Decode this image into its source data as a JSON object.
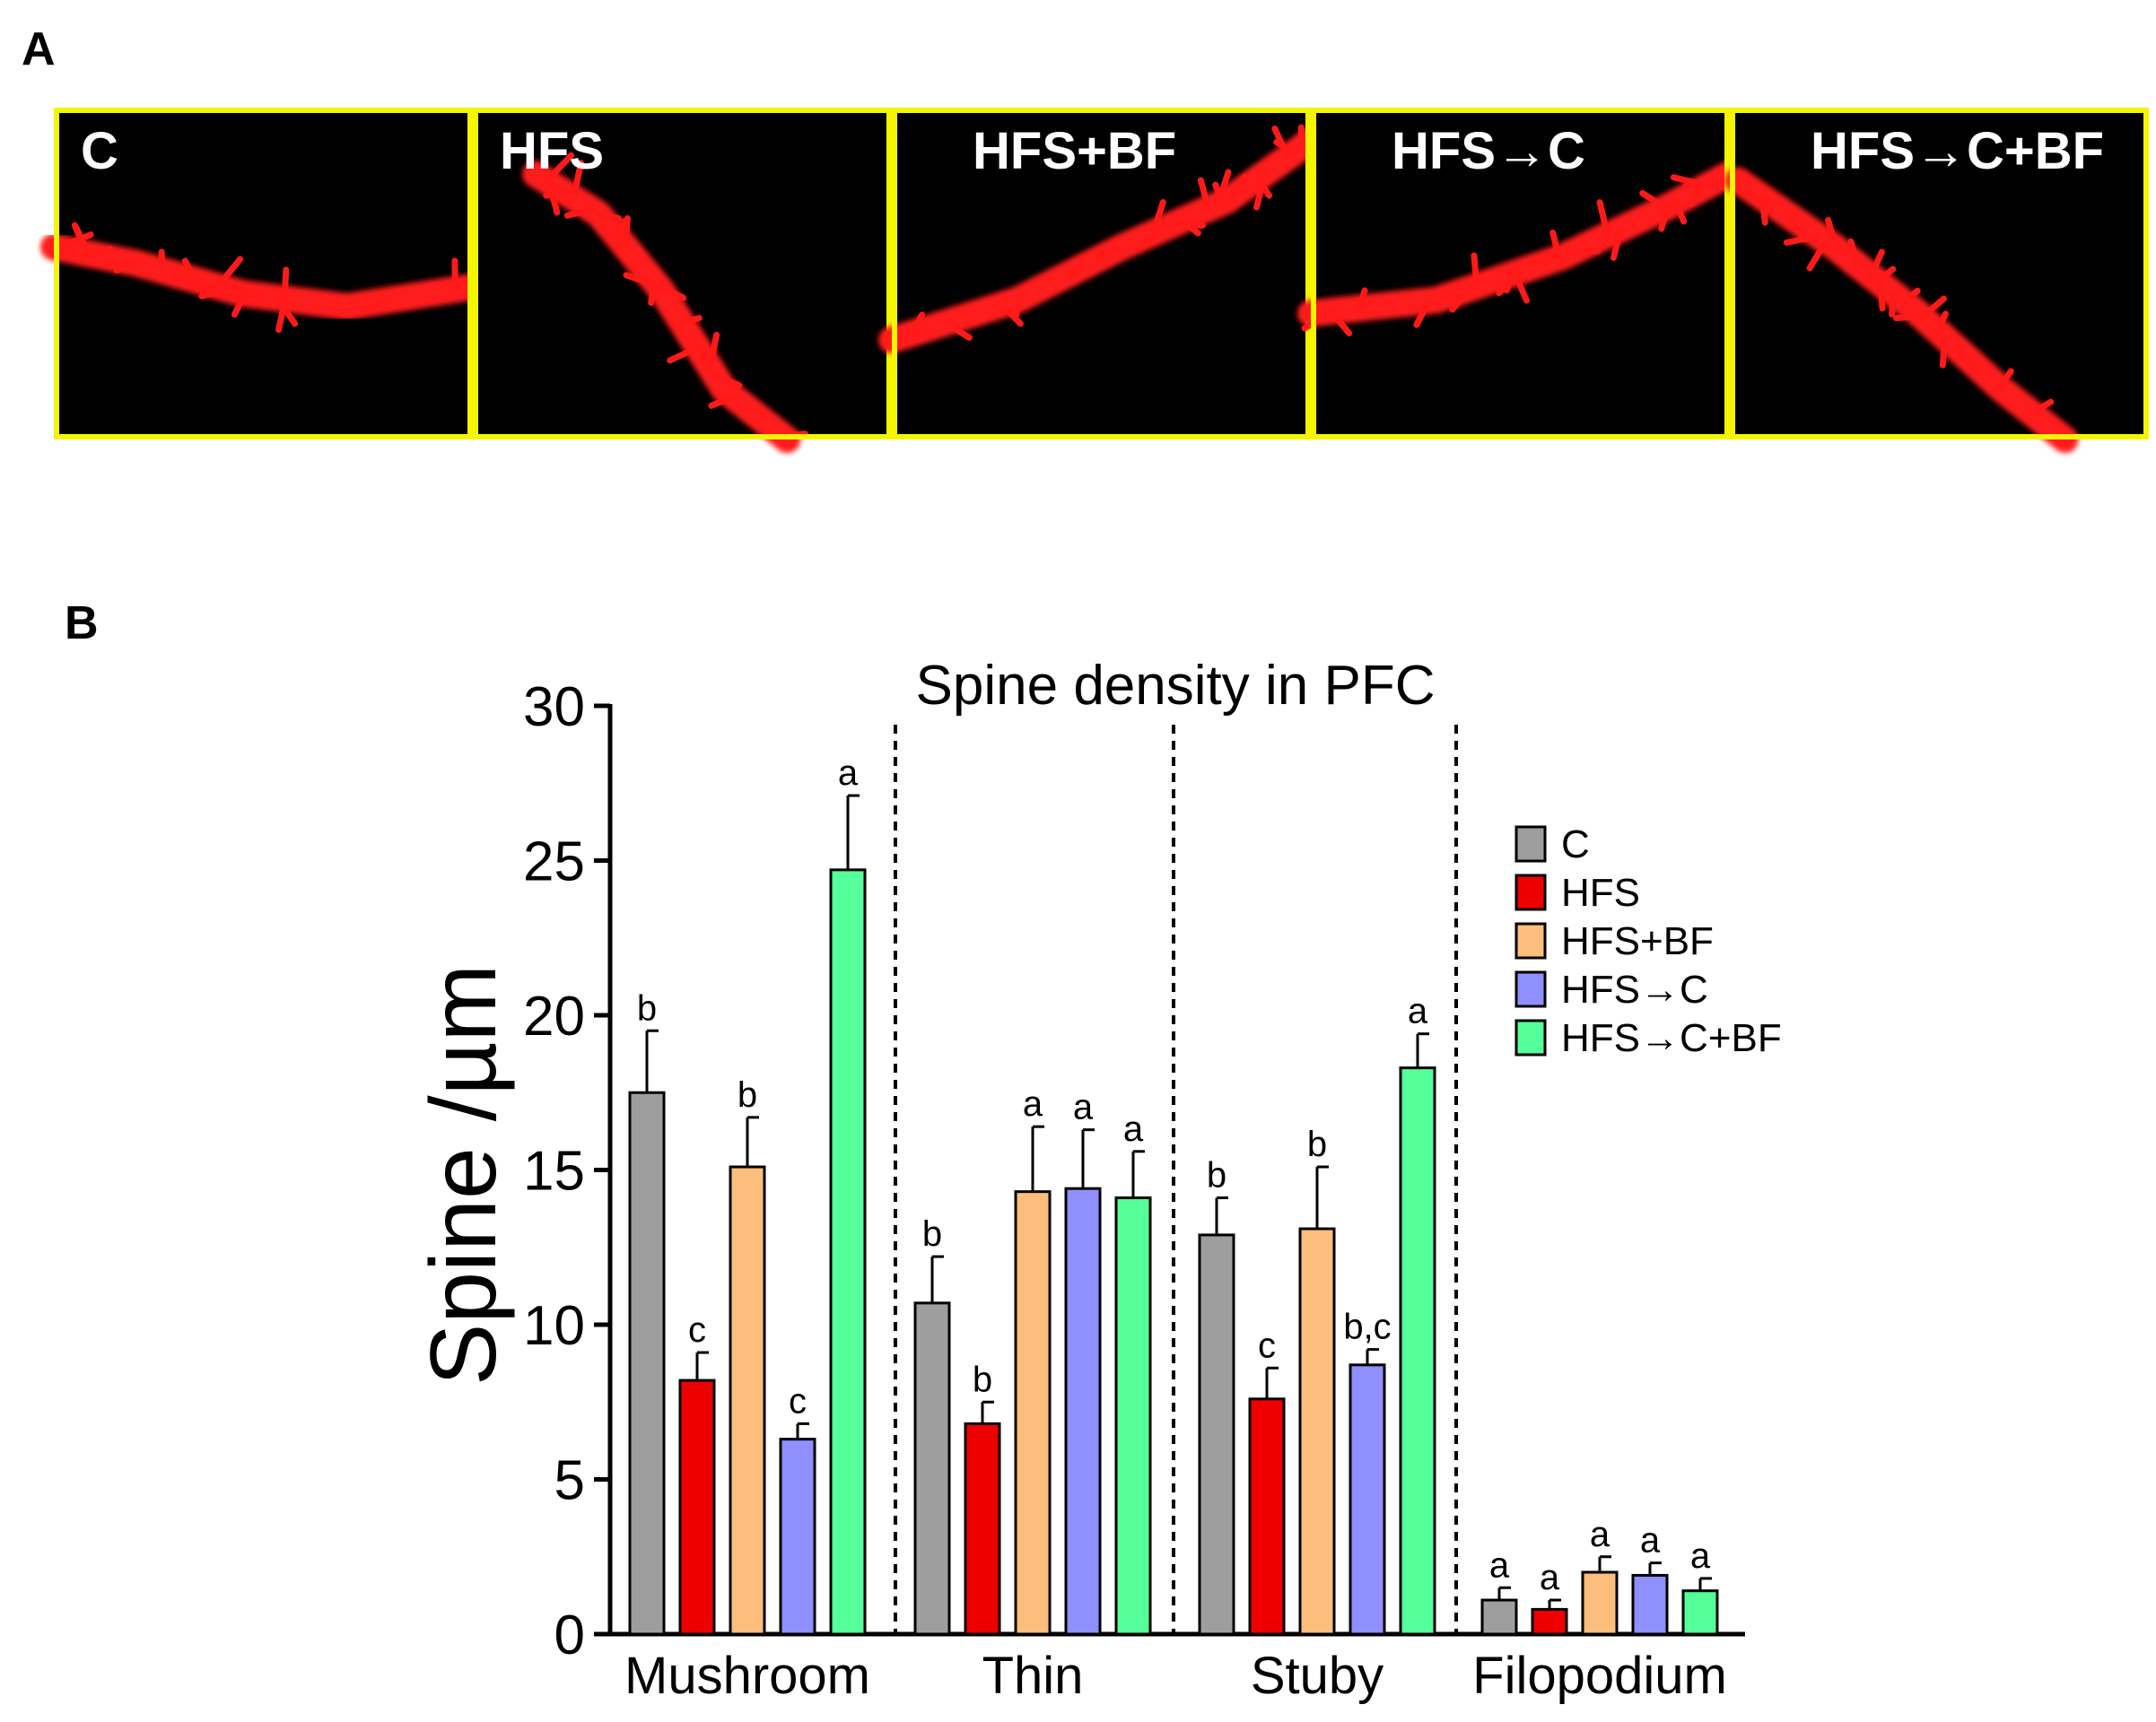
{
  "panel_a": {
    "letter": "A",
    "images": [
      {
        "label": "C"
      },
      {
        "label": "HFS"
      },
      {
        "label": "HFS+BF"
      },
      {
        "label": "HFS→C"
      },
      {
        "label": "HFS→C+BF"
      }
    ],
    "frame_color": "#f5f500",
    "stain_color": "#ff1a1a"
  },
  "panel_b": {
    "letter": "B"
  },
  "chart_data": {
    "type": "bar",
    "title": "Spine density in PFC",
    "ylabel": "Spine /µm",
    "xlabel": "",
    "ylim": [
      0,
      30
    ],
    "yticks": [
      "0",
      "5",
      "10",
      "15",
      "20",
      "25",
      "30"
    ],
    "categories": [
      "Mushroom",
      "Thin",
      "Stuby",
      "Filopodium"
    ],
    "series": [
      {
        "name": "C",
        "color": "#9e9e9e",
        "values": [
          17.5,
          10.7,
          12.9,
          1.1
        ],
        "errors": [
          2.0,
          1.5,
          1.2,
          0.4
        ],
        "letters": [
          "b",
          "b",
          "b",
          "a"
        ]
      },
      {
        "name": "HFS",
        "color": "#ee0000",
        "values": [
          8.2,
          6.8,
          7.6,
          0.8
        ],
        "errors": [
          0.9,
          0.7,
          1.0,
          0.3
        ],
        "letters": [
          "c",
          "b",
          "c",
          "a"
        ]
      },
      {
        "name": "HFS+BF",
        "color": "#fdbd7c",
        "values": [
          15.1,
          14.3,
          13.1,
          2.0
        ],
        "errors": [
          1.6,
          2.1,
          2.0,
          0.5
        ],
        "letters": [
          "b",
          "a",
          "b",
          "a"
        ]
      },
      {
        "name": "HFS→C",
        "color": "#8f8fff",
        "values": [
          6.3,
          14.4,
          8.7,
          1.9
        ],
        "errors": [
          0.5,
          1.9,
          0.5,
          0.4
        ],
        "letters": [
          "c",
          "a",
          "b,c",
          "a"
        ]
      },
      {
        "name": "HFS→C+BF",
        "color": "#55ff99",
        "values": [
          24.7,
          14.1,
          18.3,
          1.4
        ],
        "errors": [
          2.4,
          1.5,
          1.1,
          0.4
        ],
        "letters": [
          "a",
          "a",
          "a",
          "a"
        ]
      }
    ],
    "legend_placement": "right",
    "grid": false
  }
}
